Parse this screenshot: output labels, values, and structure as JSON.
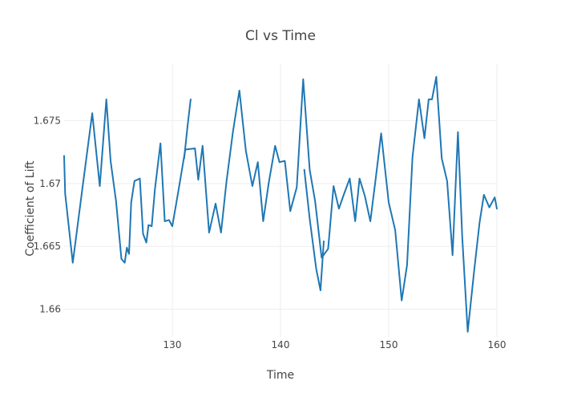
{
  "chart_data": {
    "type": "line",
    "title": "Cl vs Time",
    "xlabel": "Time",
    "ylabel": "Coefficient of Lift",
    "xlim": [
      120,
      160
    ],
    "ylim": [
      1.6578,
      1.6795
    ],
    "x_ticks": [
      130,
      140,
      150,
      160
    ],
    "x_tick_labels": [
      "130",
      "140",
      "150",
      "160"
    ],
    "y_ticks": [
      1.66,
      1.665,
      1.67,
      1.675
    ],
    "y_tick_labels": [
      "1.66",
      "1.665",
      "1.67",
      "1.675"
    ],
    "grid": true,
    "legend": false,
    "series": [
      {
        "color": "#1f77b4",
        "x": [
          120.0,
          120.1,
          120.8,
          121.7,
          122.6,
          123.3,
          123.9,
          124.3,
          124.8,
          125.3,
          125.6,
          125.8,
          126.0,
          126.2,
          126.5,
          127.0,
          127.3,
          127.6,
          127.8,
          128.1,
          128.4,
          128.9,
          129.3,
          129.7,
          130.0,
          130.6,
          131.2,
          132.1,
          132.4,
          132.8,
          133.4,
          134.0,
          134.5,
          135.0,
          135.6,
          136.2,
          136.8,
          137.4,
          137.9,
          138.4,
          138.9,
          139.5,
          139.9,
          140.4,
          140.9,
          141.5,
          142.1,
          142.7,
          143.2,
          143.8,
          144.4,
          144.9,
          145.4,
          145.8,
          146.4,
          146.9,
          147.3,
          147.8,
          148.3,
          148.8,
          149.3,
          150.0,
          150.6,
          151.2,
          151.7,
          152.2,
          152.8,
          153.3,
          153.7,
          154.0,
          154.4,
          154.9,
          155.4,
          155.9,
          156.4,
          156.8,
          157.3,
          157.9,
          158.4,
          158.8,
          159.3,
          159.8,
          160.0
        ],
        "y": [
          1.6722,
          1.6692,
          1.6637,
          1.6697,
          1.6756,
          1.6698,
          1.6767,
          1.6718,
          1.6686,
          1.664,
          1.6637,
          1.6649,
          1.6644,
          1.6685,
          1.6702,
          1.6704,
          1.666,
          1.6653,
          1.6667,
          1.6666,
          1.6696,
          1.6732,
          1.667,
          1.6671,
          1.6666,
          1.6696,
          1.6727,
          1.6728,
          1.6703,
          1.673,
          1.6661,
          1.6684,
          1.6661,
          1.6701,
          1.6741,
          1.6774,
          1.6726,
          1.6698,
          1.6717,
          1.667,
          1.67,
          1.673,
          1.6717,
          1.6718,
          1.6678,
          1.6697,
          1.6783,
          1.6711,
          1.6686,
          1.6641,
          1.6648,
          1.6698,
          1.668,
          1.669,
          1.6704,
          1.667,
          1.6704,
          1.669,
          1.667,
          1.6704,
          1.674,
          1.6685,
          1.6663,
          1.6607,
          1.6635,
          1.6721,
          1.6767,
          1.6736,
          1.6767,
          1.6767,
          1.6785,
          1.672,
          1.6702,
          1.6643,
          1.6741,
          1.6657,
          1.6582,
          1.6631,
          1.6669,
          1.6691,
          1.6681,
          1.6689,
          1.668
        ]
      },
      {
        "color": "#1f77b4",
        "x": [
          142.2,
          142.7,
          143.3,
          143.7,
          144.0
        ],
        "y": [
          1.6711,
          1.6672,
          1.6632,
          1.6615,
          1.6654
        ]
      }
    ],
    "extra_segments": [
      {
        "color": "#1f77b4",
        "x": [
          131.1,
          131.4,
          131.7
        ],
        "y": [
          1.672,
          1.6745,
          1.6767
        ]
      }
    ]
  }
}
